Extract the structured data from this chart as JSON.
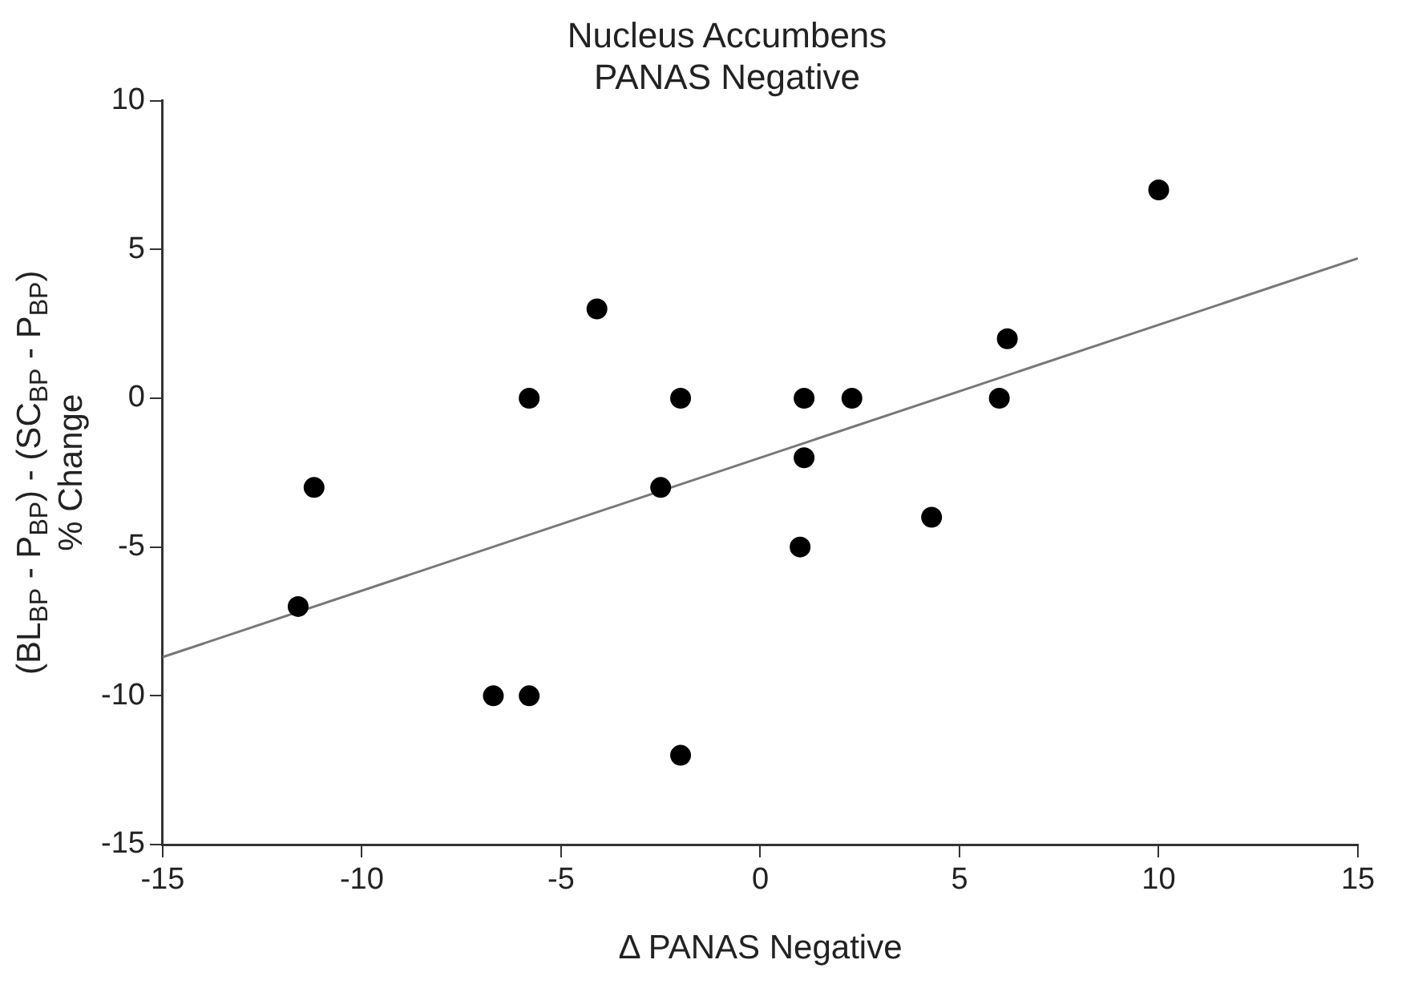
{
  "chart_data": {
    "type": "scatter",
    "title": "Nucleus Accumbens\nPANAS Negative",
    "xlabel": "Δ PANAS Negative",
    "ylabel": "(BL$_{BP}$ - P$_{BP}$) - (SC$_{BP}$ - P$_{BP}$)\n% Change",
    "xlim": [
      -15,
      15
    ],
    "xticks": [
      -15,
      -10,
      -5,
      0,
      5,
      10,
      15
    ],
    "ylim": [
      -15,
      10
    ],
    "yticks": [
      -15,
      -10,
      -5,
      0,
      5,
      10
    ],
    "grid": false,
    "legend": false,
    "marker": "circle",
    "series": [
      {
        "type": "scatter",
        "color": "#000000",
        "x": [
          -11.6,
          -11.2,
          -6.7,
          -5.8,
          -5.8,
          -4.1,
          -2.5,
          -2,
          -2,
          1,
          1.1,
          1.1,
          2.3,
          4.3,
          6,
          6.2,
          10
        ],
        "values": [
          -7,
          -3,
          -10,
          0,
          -10,
          3,
          -3,
          0,
          -12,
          -5,
          0,
          -2,
          0,
          -4,
          0,
          2,
          7
        ]
      },
      {
        "type": "line",
        "color": "#777777",
        "marker": "none",
        "line_style": "solid",
        "x": [
          -15,
          15
        ],
        "values": [
          -8.7,
          4.7
        ]
      }
    ]
  }
}
